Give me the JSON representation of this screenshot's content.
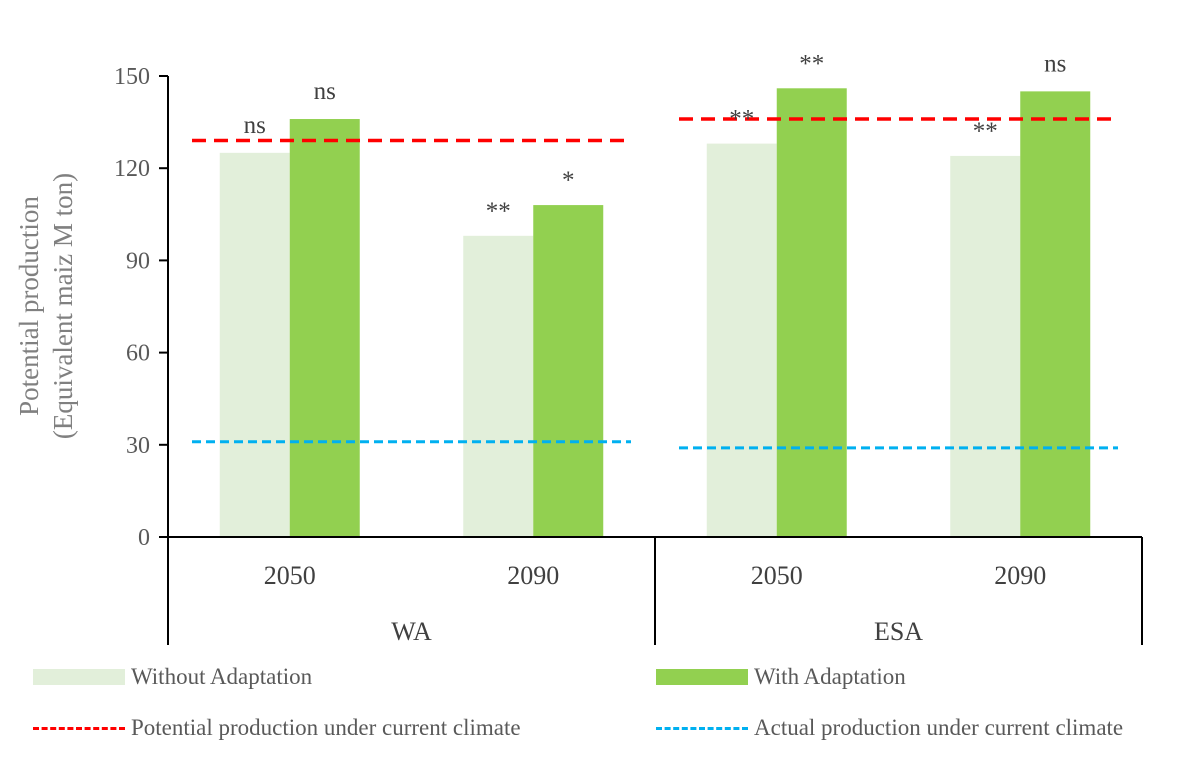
{
  "chart_data": {
    "type": "bar",
    "ylabel": [
      "Potential production",
      "(Equivalent maiz M ton)"
    ],
    "ylim": [
      0,
      150
    ],
    "yticks": [
      0,
      30,
      60,
      90,
      120,
      150
    ],
    "groups": [
      "WA",
      "ESA"
    ],
    "categories": [
      {
        "group": "WA",
        "label": "2050"
      },
      {
        "group": "WA",
        "label": "2090"
      },
      {
        "group": "ESA",
        "label": "2050"
      },
      {
        "group": "ESA",
        "label": "2090"
      }
    ],
    "series": [
      {
        "name": "Without Adaptation",
        "color": "#e2efda",
        "values": [
          125,
          98,
          128,
          124
        ],
        "labels": [
          "ns",
          "**",
          "**",
          "**"
        ]
      },
      {
        "name": "With Adaptation",
        "color": "#92d050",
        "values": [
          136,
          108,
          146,
          145
        ],
        "labels": [
          "ns",
          "*",
          "**",
          "ns"
        ]
      }
    ],
    "reference_lines": [
      {
        "name": "Potential production under current climate",
        "color": "#ff0000",
        "segments": [
          {
            "group": "WA",
            "value": 129
          },
          {
            "group": "ESA",
            "value": 136
          }
        ]
      },
      {
        "name": "Actual production under current climate",
        "color": "#00b0f0",
        "segments": [
          {
            "group": "WA",
            "value": 31
          },
          {
            "group": "ESA",
            "value": 29
          }
        ]
      }
    ]
  },
  "legend": {
    "without": "Without Adaptation",
    "with": "With Adaptation",
    "potential": "Potential production under current climate",
    "actual": "Actual production under current climate"
  }
}
